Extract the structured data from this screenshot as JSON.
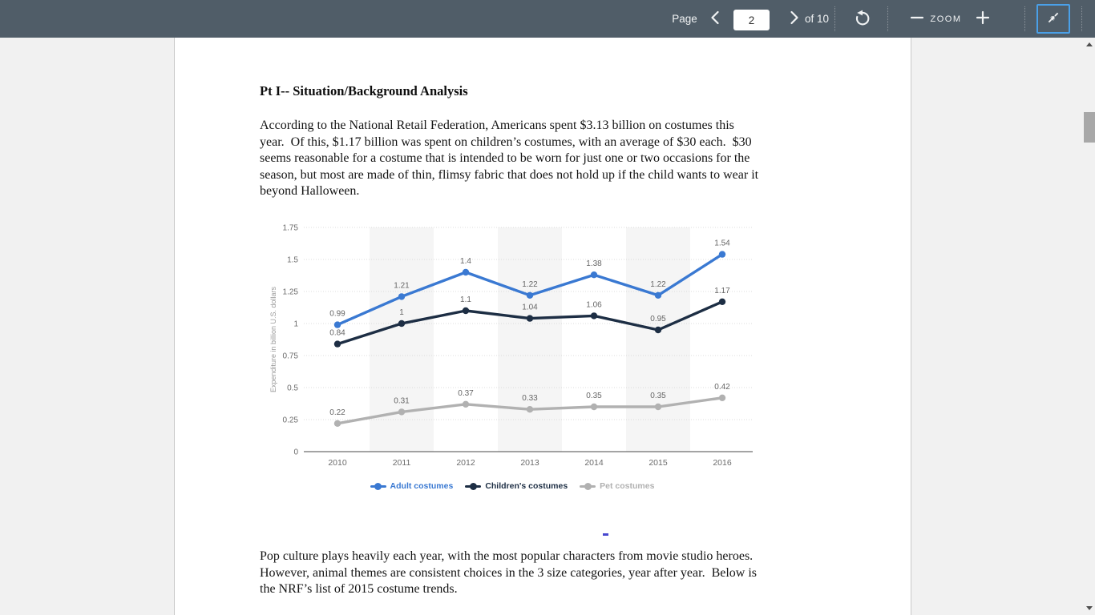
{
  "toolbar": {
    "page_label": "Page",
    "page_value": "2",
    "page_count": "of 10",
    "zoom_label": "ZOOM",
    "accent_color": "#4aa0e8"
  },
  "document": {
    "title": "Pt I-- Situation/Background Analysis",
    "para1": {
      "lines": [
        "According to the National Retail Federation, Americans spent $3.13 billion on costumes this",
        "year.  Of this, $1.17 billion was spent on children’s costumes, with an average of $30 each.  $30",
        "seems reasonable for a costume that is intended to be worn for just one or two occasions for the",
        "season, but most are made of thin, flimsy fabric that does not hold up if the child wants to wear it",
        "beyond Halloween."
      ]
    },
    "para2": {
      "lines": [
        "Pop culture plays heavily each year, with the most popular characters from movie studio heroes.",
        "However, animal themes are consistent choices in the 3 size categories, year after year.  Below is",
        "the NRF’s list of 2015 costume trends."
      ]
    }
  },
  "chart_data": {
    "type": "line",
    "title": "",
    "categories": [
      "2010",
      "2011",
      "2012",
      "2013",
      "2014",
      "2015",
      "2016"
    ],
    "series": [
      {
        "name": "Adult costumes",
        "color": "#3a79d2",
        "values": [
          0.99,
          1.21,
          1.4,
          1.22,
          1.38,
          1.22,
          1.54
        ]
      },
      {
        "name": "Children's costumes",
        "color": "#1d2e44",
        "values": [
          0.84,
          1,
          1.1,
          1.04,
          1.06,
          0.95,
          1.17
        ]
      },
      {
        "name": "Pet costumes",
        "color": "#b1b1b1",
        "values": [
          0.22,
          0.31,
          0.37,
          0.33,
          0.35,
          0.35,
          0.42
        ]
      }
    ],
    "xlabel": "",
    "ylabel": "Expenditure in billion U.S. dollars",
    "ylim": [
      0,
      1.75
    ],
    "ytick_step": 0.25,
    "grid": "horizontal-dotted",
    "band_columns": [
      1,
      3,
      5
    ],
    "band_color": "#f5f5f5",
    "value_labels": true,
    "legend_position": "bottom"
  }
}
